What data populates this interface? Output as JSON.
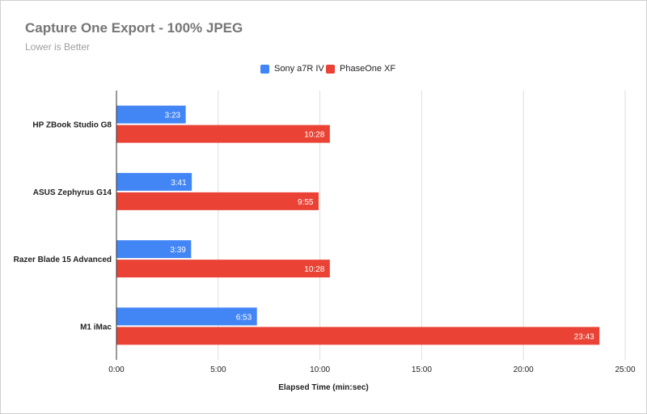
{
  "chart_data": {
    "type": "bar",
    "orientation": "horizontal",
    "title": "Capture One Export - 100% JPEG",
    "subtitle": "Lower is Better",
    "xlabel": "Elapsed Time (min:sec)",
    "ylabel": "",
    "categories": [
      "HP ZBook Studio G8",
      "ASUS Zephyrus G14",
      "Razer Blade 15 Advanced",
      "M1 iMac"
    ],
    "series": [
      {
        "name": "Sony a7R IV",
        "color": "#4285f4",
        "values_seconds": [
          203,
          221,
          219,
          413
        ],
        "labels": [
          "3:23",
          "3:41",
          "3:39",
          "6:53"
        ]
      },
      {
        "name": "PhaseOne XF",
        "color": "#ea4335",
        "values_seconds": [
          628,
          595,
          628,
          1423
        ],
        "labels": [
          "10:28",
          "9:55",
          "10:28",
          "23:43"
        ]
      }
    ],
    "xlim_seconds": [
      0,
      1500
    ],
    "xticks_seconds": [
      0,
      300,
      600,
      900,
      1200,
      1500
    ],
    "xtick_labels": [
      "0:00",
      "5:00",
      "10:00",
      "15:00",
      "20:00",
      "25:00"
    ],
    "grid": true,
    "legend_position": "top-center"
  }
}
